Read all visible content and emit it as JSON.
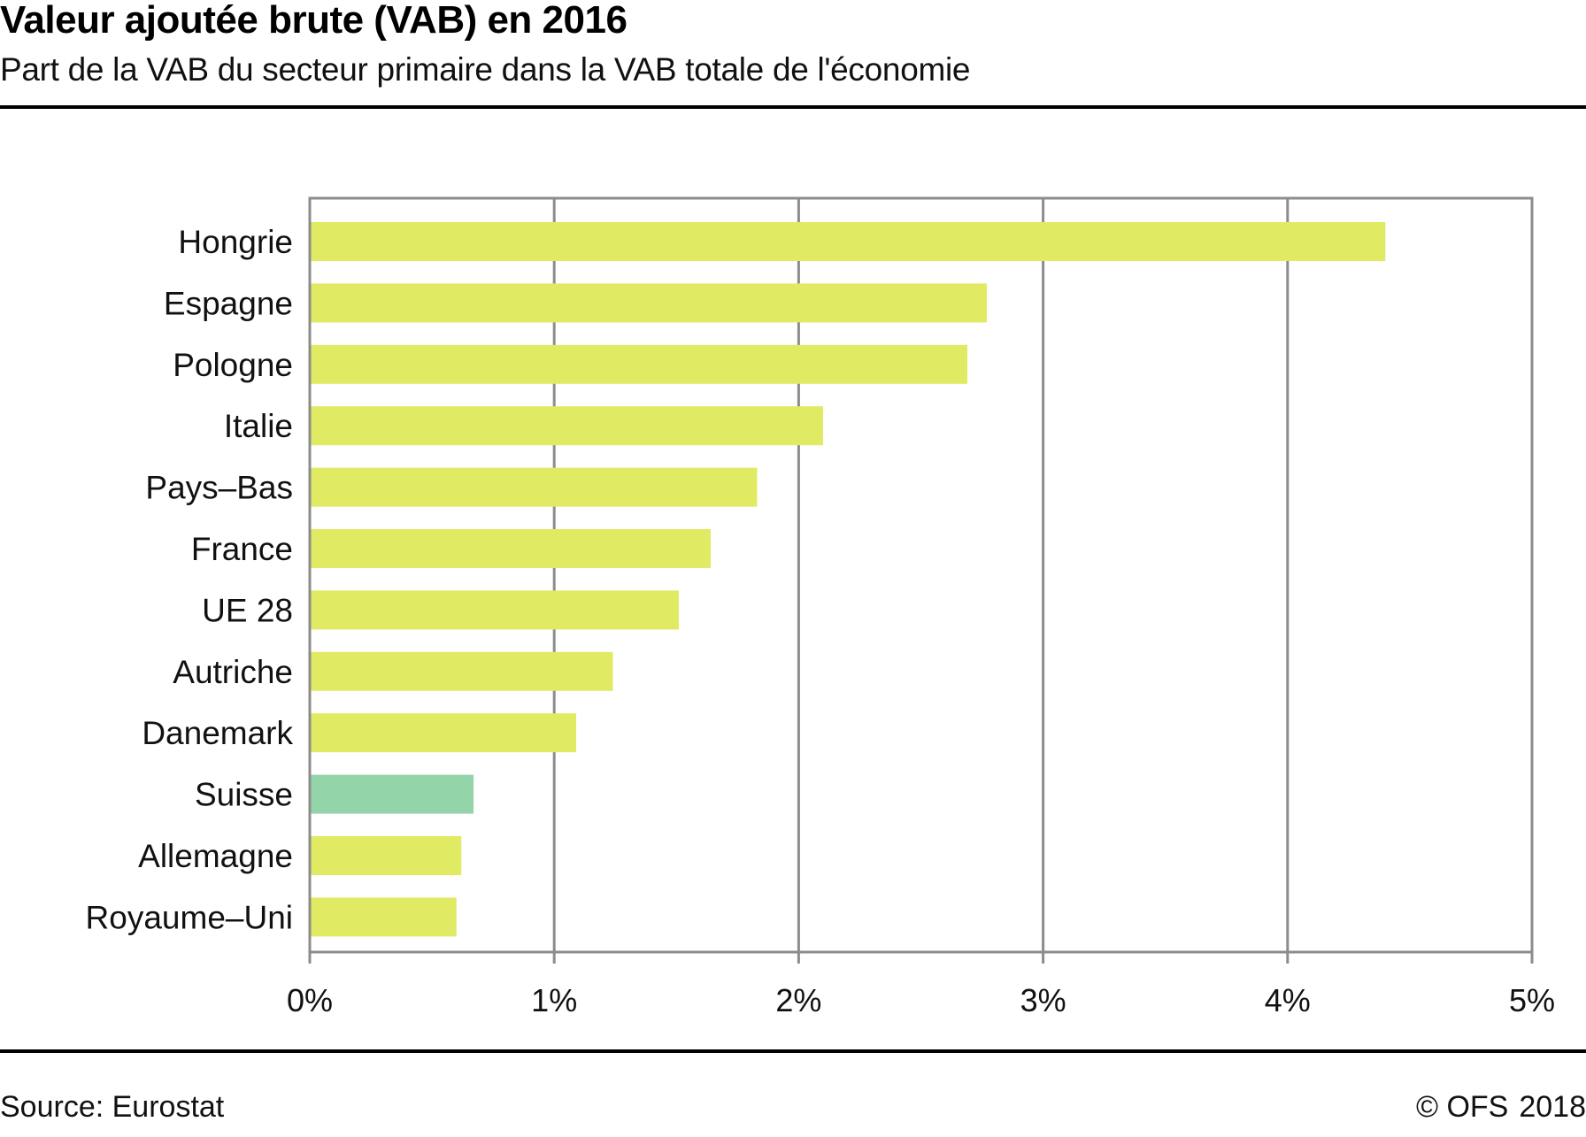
{
  "header": {
    "title": "Valeur ajoutée brute (VAB) en 2016",
    "subtitle": "Part de la VAB du secteur primaire dans la VAB totale de l'économie"
  },
  "footer": {
    "source": "Source: Eurostat",
    "copyright": "© OFS",
    "year": "2018"
  },
  "colors": {
    "bar_default": "#e0ea62",
    "bar_highlight": "#93d4a9",
    "grid": "#8c8c8c",
    "rule": "#000000"
  },
  "chart_data": {
    "type": "bar",
    "orientation": "horizontal",
    "title": "Valeur ajoutée brute (VAB) en 2016",
    "subtitle": "Part de la VAB du secteur primaire dans la VAB totale de l'économie",
    "xlabel": "",
    "ylabel": "",
    "unit": "%",
    "xlim": [
      0,
      5
    ],
    "grid": true,
    "categories": [
      "Hongrie",
      "Espagne",
      "Pologne",
      "Italie",
      "Pays–Bas",
      "France",
      "UE 28",
      "Autriche",
      "Danemark",
      "Suisse",
      "Allemagne",
      "Royaume–Uni"
    ],
    "values": [
      4.4,
      2.77,
      2.69,
      2.1,
      1.83,
      1.64,
      1.51,
      1.24,
      1.09,
      0.67,
      0.62,
      0.6
    ],
    "highlight": [
      "Suisse"
    ],
    "x_ticks": [
      0,
      1,
      2,
      3,
      4,
      5
    ],
    "x_tick_labels": [
      "0%",
      "1%",
      "2%",
      "3%",
      "4%",
      "5%"
    ],
    "legend": "none"
  }
}
